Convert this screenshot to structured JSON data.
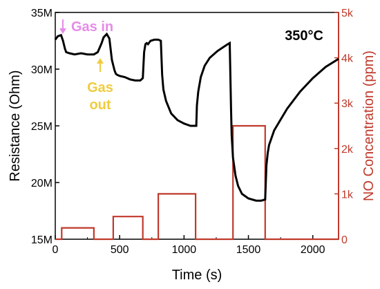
{
  "colors": {
    "resistance": "#000000",
    "concentration": "#c0392b",
    "gas_in": "#e58be8",
    "gas_out": "#f0cc3e"
  },
  "chart_data": {
    "type": "line",
    "title": "",
    "xlabel": "Time (s)",
    "ylabel_left": "Resistance (Ohm)",
    "ylabel_right": "NO Concentration (ppm)",
    "xlim": [
      0,
      2200
    ],
    "ylim_left": [
      15000000,
      35000000
    ],
    "ylim_right": [
      0,
      5000
    ],
    "x_ticks": [
      0,
      500,
      1000,
      1500,
      2000
    ],
    "x_tick_labels": [
      "0",
      "500",
      "1000",
      "1500",
      "2000"
    ],
    "y_left_ticks": [
      15000000,
      20000000,
      25000000,
      30000000,
      35000000
    ],
    "y_left_tick_labels": [
      "15M",
      "20M",
      "25M",
      "30M",
      "35M"
    ],
    "y_right_ticks": [
      0,
      1000,
      2000,
      3000,
      4000,
      5000
    ],
    "y_right_tick_labels": [
      "0",
      "1k",
      "2k",
      "3k",
      "4k",
      "5k"
    ],
    "annotations": {
      "temperature": "350°C",
      "gas_in": "Gas in",
      "gas_out_line1": "Gas",
      "gas_out_line2": "out"
    },
    "series": [
      {
        "axis": "left",
        "color": "#000000",
        "x": [
          0,
          20,
          45,
          60,
          75,
          85,
          110,
          150,
          200,
          250,
          300,
          330,
          360,
          375,
          400,
          420,
          440,
          460,
          470,
          480,
          500,
          540,
          580,
          620,
          660,
          680,
          690,
          700,
          710,
          720,
          740,
          770,
          800,
          820,
          830,
          840,
          860,
          900,
          950,
          1000,
          1050,
          1080,
          1095,
          1100,
          1110,
          1130,
          1160,
          1200,
          1260,
          1300,
          1340,
          1355,
          1365,
          1370,
          1380,
          1400,
          1420,
          1450,
          1500,
          1560,
          1600,
          1630,
          1640,
          1650,
          1660,
          1700,
          1800,
          1900,
          2000,
          2100,
          2200
        ],
        "y": [
          32600000,
          32900000,
          33000000,
          32500000,
          31800000,
          31500000,
          31400000,
          31300000,
          31400000,
          31300000,
          31300000,
          31500000,
          32300000,
          32800000,
          33100000,
          32700000,
          30800000,
          29900000,
          29600000,
          29500000,
          29400000,
          29300000,
          29100000,
          29000000,
          29000000,
          29200000,
          31500000,
          32200000,
          32300000,
          32200000,
          32500000,
          32600000,
          32600000,
          32500000,
          29500000,
          28200000,
          27200000,
          26100000,
          25500000,
          25200000,
          25000000,
          25000000,
          25000000,
          26800000,
          28000000,
          29300000,
          30300000,
          31000000,
          31600000,
          31900000,
          32200000,
          32300000,
          26500000,
          24200000,
          22200000,
          20600000,
          19700000,
          19000000,
          18600000,
          18400000,
          18400000,
          18500000,
          21500000,
          22600000,
          23300000,
          24600000,
          26500000,
          28000000,
          29200000,
          30200000,
          30900000
        ]
      },
      {
        "axis": "right",
        "color": "#c0392b",
        "step": true,
        "x": [
          0,
          50,
          50,
          300,
          300,
          350,
          350,
          450,
          450,
          680,
          680,
          700,
          700,
          800,
          800,
          1090,
          1090,
          1100,
          1100,
          1350,
          1350,
          1360,
          1360,
          1380,
          1380,
          1630,
          1630,
          1640,
          1640,
          2200
        ],
        "y": [
          0,
          0,
          250,
          250,
          0,
          0,
          0,
          0,
          500,
          500,
          0,
          0,
          0,
          0,
          1000,
          1000,
          0,
          0,
          0,
          0,
          0,
          0,
          0,
          0,
          2500,
          2500,
          0,
          0,
          0,
          0
        ]
      }
    ]
  }
}
